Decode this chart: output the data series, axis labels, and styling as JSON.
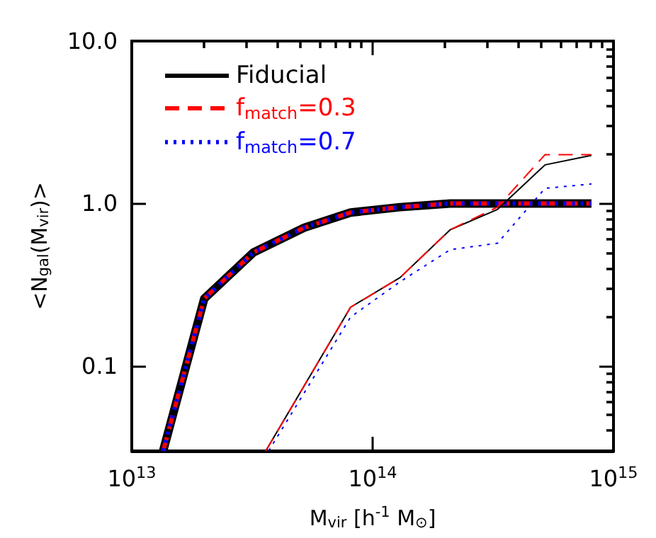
{
  "chart_data": {
    "type": "line",
    "xlabel": "M$_{vir}$ [h$^{-1}$ M$_{⊙}$]",
    "ylabel": "<N$_{gal}$(M$_{vir}$)>",
    "log": "xy",
    "grid": false,
    "legend": "top left",
    "marker": "none",
    "xlim": [
      10000000000000.0,
      1000000000000000.0
    ],
    "ylim": [
      0.03,
      10
    ],
    "xticks": [
      {
        "value": 10000000000000.0,
        "label": "10$^{13}$"
      },
      {
        "value": 20000000000000.0,
        "label": null
      },
      {
        "value": 30000000000000.0,
        "label": null
      },
      {
        "value": 40000000000000.0,
        "label": null
      },
      {
        "value": 50000000000000.0,
        "label": null
      },
      {
        "value": 60000000000000.0,
        "label": null
      },
      {
        "value": 70000000000000.0,
        "label": null
      },
      {
        "value": 80000000000000.0,
        "label": null
      },
      {
        "value": 90000000000000.0,
        "label": null
      },
      {
        "value": 100000000000000.0,
        "label": "10$^{14}$"
      },
      {
        "value": 200000000000000.0,
        "label": null
      },
      {
        "value": 300000000000000.0,
        "label": null
      },
      {
        "value": 400000000000000.0,
        "label": null
      },
      {
        "value": 500000000000000.0,
        "label": null
      },
      {
        "value": 600000000000000.0,
        "label": null
      },
      {
        "value": 700000000000000.0,
        "label": null
      },
      {
        "value": 800000000000000.0,
        "label": null
      },
      {
        "value": 900000000000000.0,
        "label": null
      },
      {
        "value": 1000000000000000.0,
        "label": "10$^{15}$"
      }
    ],
    "yticks": [
      {
        "value": 0.04,
        "label": null
      },
      {
        "value": 0.05,
        "label": null
      },
      {
        "value": 0.06,
        "label": null
      },
      {
        "value": 0.07,
        "label": null
      },
      {
        "value": 0.08,
        "label": null
      },
      {
        "value": 0.09,
        "label": null
      },
      {
        "value": 0.1,
        "label": "0.1"
      },
      {
        "value": 0.2,
        "label": null
      },
      {
        "value": 0.3,
        "label": null
      },
      {
        "value": 0.4,
        "label": null
      },
      {
        "value": 0.5,
        "label": null
      },
      {
        "value": 0.6,
        "label": null
      },
      {
        "value": 0.7,
        "label": null
      },
      {
        "value": 0.8,
        "label": null
      },
      {
        "value": 0.9,
        "label": null
      },
      {
        "value": 1,
        "label": "1.0"
      },
      {
        "value": 2,
        "label": null
      },
      {
        "value": 3,
        "label": null
      },
      {
        "value": 4,
        "label": null
      },
      {
        "value": 5,
        "label": null
      },
      {
        "value": 6,
        "label": null
      },
      {
        "value": 7,
        "label": null
      },
      {
        "value": 8,
        "label": null
      },
      {
        "value": 9,
        "label": null
      },
      {
        "value": 10,
        "label": "10.0"
      }
    ],
    "series": [
      {
        "name": "Fiducial",
        "color": "#000000",
        "line_style": "solid",
        "x": [
          13500000000000.0,
          20000000000000.0,
          32000000000000.0,
          52000000000000.0,
          81000000000000.0,
          130000000000000.0,
          210000000000000.0,
          330000000000000.0,
          520000000000000.0,
          810000000000000.0
        ],
        "values": [
          0.03,
          0.26,
          0.5,
          0.71,
          0.88,
          0.95,
          1.0,
          1.0,
          1.0,
          1.0
        ]
      },
      {
        "name": "f$_{match}$=0.3",
        "color": "#ff0000",
        "line_style": "dashed",
        "x": [
          13500000000000.0,
          20000000000000.0,
          32000000000000.0,
          52000000000000.0,
          81000000000000.0,
          130000000000000.0,
          210000000000000.0,
          330000000000000.0,
          520000000000000.0,
          810000000000000.0
        ],
        "values": [
          0.03,
          0.26,
          0.5,
          0.71,
          0.88,
          0.95,
          1.0,
          1.0,
          1.0,
          1.0
        ]
      },
      {
        "name": "f$_{match}$=0.7",
        "color": "#0000ff",
        "line_style": "dotted",
        "x": [
          13500000000000.0,
          20000000000000.0,
          32000000000000.0,
          52000000000000.0,
          81000000000000.0,
          130000000000000.0,
          210000000000000.0,
          330000000000000.0,
          520000000000000.0,
          810000000000000.0
        ],
        "values": [
          0.03,
          0.26,
          0.5,
          0.71,
          0.88,
          0.95,
          1.0,
          1.0,
          1.0,
          1.0
        ]
      },
      {
        "color": "#000000",
        "line_style": "solid",
        "x": [
          36000000000000.0,
          81000000000000.0,
          130000000000000.0,
          210000000000000.0,
          330000000000000.0,
          520000000000000.0,
          810000000000000.0
        ],
        "values": [
          0.03,
          0.23,
          0.35,
          0.69,
          0.92,
          1.73,
          1.98
        ]
      },
      {
        "color": "#ff0000",
        "line_style": "dashed",
        "x": [
          36000000000000.0,
          81000000000000.0,
          130000000000000.0,
          210000000000000.0,
          330000000000000.0,
          520000000000000.0,
          810000000000000.0
        ],
        "values": [
          0.03,
          0.23,
          0.35,
          0.69,
          0.95,
          2.0,
          2.0
        ]
      },
      {
        "color": "#0000ff",
        "line_style": "dotted",
        "x": [
          37000000000000.0,
          81000000000000.0,
          130000000000000.0,
          210000000000000.0,
          330000000000000.0,
          520000000000000.0,
          810000000000000.0
        ],
        "values": [
          0.03,
          0.2,
          0.33,
          0.52,
          0.57,
          1.24,
          1.32
        ]
      }
    ]
  }
}
